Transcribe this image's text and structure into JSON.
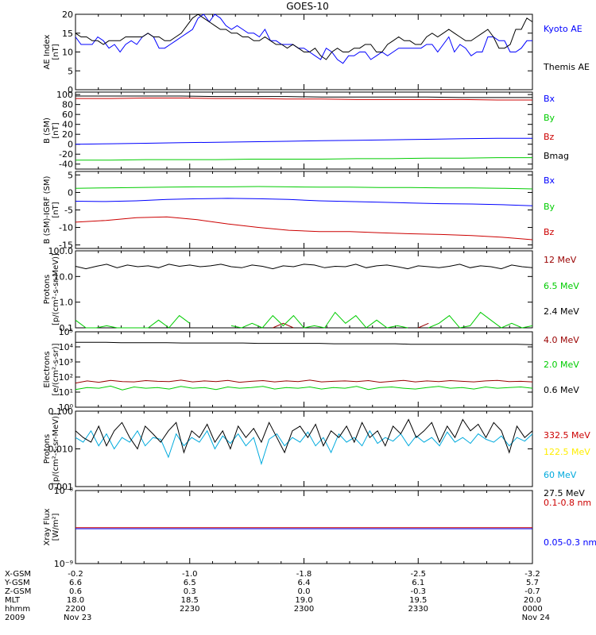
{
  "title": "GOES-10",
  "colors": {
    "black": "#000000",
    "blue": "#0000ff",
    "red": "#cc0000",
    "green": "#00cc00",
    "yellow": "#ffee00",
    "cyan": "#00aadd",
    "darkred": "#990000"
  },
  "chart_data": [
    {
      "type": "line",
      "ylabel": [
        "AE Index",
        "[nT]"
      ],
      "scale": "linear",
      "ylim": [
        0,
        20
      ],
      "yticks": [
        "0",
        "5",
        "10",
        "15",
        "20"
      ],
      "series": [
        {
          "name": "Kyoto AE",
          "color": "blue",
          "values": [
            14,
            12,
            12,
            12,
            14,
            13,
            11,
            12,
            10,
            12,
            13,
            12,
            14,
            15,
            14,
            11,
            11,
            12,
            13,
            14,
            15,
            16,
            19,
            20,
            18,
            20,
            19,
            17,
            16,
            17,
            16,
            15,
            15,
            14,
            16,
            13,
            13,
            12,
            12,
            12,
            11,
            11,
            10,
            9,
            8,
            11,
            10,
            8,
            7,
            9,
            9,
            10,
            10,
            8,
            9,
            10,
            9,
            10,
            11,
            11,
            11,
            11,
            11,
            12,
            12,
            10,
            12,
            14,
            10,
            12,
            11,
            9,
            10,
            10,
            14,
            14,
            13,
            13,
            10,
            10,
            11,
            13,
            13
          ]
        },
        {
          "name": "Themis AE",
          "color": "black",
          "values": [
            15,
            14,
            14,
            13,
            13,
            12,
            13,
            13,
            13,
            14,
            14,
            14,
            14,
            15,
            14,
            14,
            13,
            13,
            14,
            15,
            17,
            19,
            20,
            19,
            18,
            17,
            16,
            16,
            15,
            15,
            14,
            14,
            13,
            13,
            14,
            13,
            12,
            12,
            11,
            12,
            11,
            10,
            10,
            11,
            9,
            8,
            10,
            11,
            10,
            10,
            11,
            11,
            12,
            12,
            10,
            10,
            12,
            13,
            14,
            13,
            13,
            12,
            12,
            14,
            15,
            14,
            15,
            16,
            15,
            14,
            13,
            13,
            14,
            15,
            16,
            14,
            11,
            11,
            12,
            16,
            16,
            19,
            18
          ]
        }
      ]
    },
    {
      "type": "line",
      "ylabel": [
        "B (SM)",
        "[nT]"
      ],
      "scale": "linear",
      "ylim": [
        -50,
        105
      ],
      "yticks": [
        "-40",
        "-20",
        "0",
        "20",
        "40",
        "60",
        "80",
        "100"
      ],
      "series": [
        {
          "name": "Bx",
          "color": "blue",
          "values": [
            0,
            1,
            2,
            3,
            4,
            5,
            6,
            7,
            8,
            9,
            10,
            11,
            12,
            12
          ]
        },
        {
          "name": "By",
          "color": "green",
          "values": [
            -32,
            -32,
            -31,
            -31,
            -31,
            -30,
            -30,
            -30,
            -29,
            -29,
            -28,
            -28,
            -27,
            -27
          ]
        },
        {
          "name": "Bz",
          "color": "red",
          "values": [
            92,
            92,
            93,
            93,
            92,
            92,
            91,
            91,
            90,
            90,
            90,
            90,
            89,
            89
          ]
        },
        {
          "name": "Bmag",
          "color": "black",
          "values": [
            97,
            97,
            97,
            97,
            96,
            96,
            96,
            95,
            95,
            95,
            95,
            94,
            94,
            94
          ]
        }
      ]
    },
    {
      "type": "line",
      "ylabel": [
        "B (SM)-IGRF (SM)",
        "[nT]"
      ],
      "scale": "linear",
      "ylim": [
        -16,
        6
      ],
      "yticks": [
        "-15",
        "-10",
        "-5",
        "0",
        "5"
      ],
      "series": [
        {
          "name": "Bx",
          "color": "blue",
          "values": [
            -2.5,
            -2.6,
            -2.4,
            -2.0,
            -1.8,
            -1.7,
            -1.8,
            -2.0,
            -2.4,
            -2.6,
            -2.8,
            -3.0,
            -3.2,
            -3.3,
            -3.5,
            -3.8
          ]
        },
        {
          "name": "By",
          "color": "green",
          "values": [
            1.2,
            1.3,
            1.4,
            1.5,
            1.6,
            1.6,
            1.7,
            1.6,
            1.5,
            1.5,
            1.4,
            1.4,
            1.3,
            1.3,
            1.2,
            1.0
          ]
        },
        {
          "name": "Bz",
          "color": "red",
          "values": [
            -8.5,
            -8.0,
            -7.2,
            -7.0,
            -7.8,
            -9.0,
            -10.0,
            -10.8,
            -11.2,
            -11.2,
            -11.5,
            -11.8,
            -12.0,
            -12.3,
            -12.8,
            -13.5
          ]
        }
      ]
    },
    {
      "type": "line",
      "ylabel": [
        "Protons",
        "[p/(cm²-s-sr-MeV)]"
      ],
      "scale": "log",
      "ylim": [
        0.1,
        100
      ],
      "yticks": [
        "0.1",
        "1.0",
        "10.0",
        "100.0"
      ],
      "series": [
        {
          "name": "12 MeV",
          "color": "darkred",
          "values": [
            null,
            null,
            null,
            null,
            null,
            null,
            null,
            null,
            null,
            null,
            null,
            null,
            null,
            null,
            null,
            null,
            null,
            null,
            null,
            0.1,
            0.15,
            0.1,
            null,
            null,
            null,
            null,
            null,
            null,
            null,
            null,
            null,
            null,
            null,
            0.1,
            0.15,
            null,
            null,
            null,
            null,
            null,
            null,
            null,
            null,
            null,
            null
          ]
        },
        {
          "name": "6.5 MeV",
          "color": "green",
          "values": [
            0.2,
            0.1,
            0.1,
            0.12,
            0.1,
            0.1,
            0.1,
            0.1,
            0.2,
            0.1,
            0.3,
            0.15,
            null,
            null,
            null,
            0.12,
            0.1,
            0.15,
            0.1,
            0.3,
            0.12,
            0.3,
            0.1,
            0.12,
            0.1,
            0.4,
            0.15,
            0.3,
            0.1,
            0.2,
            0.1,
            0.12,
            0.1,
            null,
            0.1,
            0.15,
            0.3,
            0.1,
            0.12,
            0.4,
            0.2,
            0.1,
            0.15,
            0.1,
            0.12
          ]
        },
        {
          "name": "2.4 MeV",
          "color": "black",
          "values": [
            25,
            20,
            25,
            30,
            22,
            28,
            24,
            26,
            22,
            30,
            25,
            28,
            24,
            26,
            30,
            24,
            22,
            28,
            25,
            20,
            26,
            24,
            30,
            28,
            22,
            25,
            24,
            30,
            22,
            26,
            28,
            24,
            20,
            26,
            24,
            22,
            25,
            30,
            22,
            26,
            24,
            20,
            28,
            24,
            22
          ]
        }
      ]
    },
    {
      "type": "line",
      "ylabel": [
        "Electrons",
        "[e/(cm²-s-sr)]"
      ],
      "scale": "log",
      "ylim": [
        1,
        100000
      ],
      "yticks": [
        "10⁰",
        "10¹",
        "10²",
        "10³",
        "10⁴",
        "10⁵"
      ],
      "series": [
        {
          "name": "4.0 MeV",
          "color": "darkred",
          "values": [
            40,
            55,
            45,
            60,
            50,
            48,
            58,
            52,
            50,
            62,
            48,
            55,
            50,
            60,
            45,
            52,
            58,
            48,
            55,
            50,
            62,
            48,
            52,
            55,
            50,
            58,
            45,
            52,
            60,
            48,
            55,
            50,
            58,
            52,
            48,
            55,
            60,
            50,
            52,
            48
          ]
        },
        {
          "name": "2.0 MeV",
          "color": "green",
          "values": [
            15,
            20,
            18,
            25,
            14,
            22,
            18,
            20,
            16,
            24,
            18,
            20,
            15,
            22,
            18,
            20,
            24,
            16,
            20,
            18,
            22,
            16,
            20,
            18,
            24,
            15,
            20,
            22,
            18,
            16,
            20,
            24,
            18,
            20,
            16,
            22,
            18,
            20,
            22,
            18
          ]
        },
        {
          "name": "0.6 MeV",
          "color": "black",
          "values": [
            20000,
            20000,
            20000,
            19000,
            19000,
            19000,
            19000,
            18000,
            18000,
            18000,
            18000,
            18000,
            17000,
            17000,
            17000,
            17000,
            17000,
            16000,
            16000,
            16000,
            16000,
            16000,
            15000,
            15000,
            15000,
            15000,
            15000,
            15000,
            15000,
            15000,
            14000
          ]
        }
      ]
    },
    {
      "type": "line",
      "ylabel": [
        "Protons",
        "[p/(cm²-s-sr-MeV)]"
      ],
      "scale": "log",
      "ylim": [
        0.001,
        0.1
      ],
      "yticks": [
        "0.001",
        "0.010",
        "0.100"
      ],
      "series": [
        {
          "name": "332.5 MeV",
          "color": "red",
          "values": []
        },
        {
          "name": "122.5 MeV",
          "color": "yellow",
          "values": []
        },
        {
          "name": "60 MeV",
          "color": "cyan",
          "values": [
            0.02,
            0.015,
            0.03,
            0.012,
            0.025,
            0.01,
            0.02,
            0.015,
            0.03,
            0.012,
            0.02,
            0.018,
            0.006,
            0.025,
            0.012,
            0.02,
            0.015,
            0.03,
            0.01,
            0.022,
            0.014,
            0.025,
            0.012,
            0.02,
            0.004,
            0.018,
            0.025,
            0.012,
            0.02,
            0.015,
            0.028,
            0.012,
            0.02,
            0.008,
            0.025,
            0.015,
            0.02,
            0.012,
            0.03,
            0.014,
            0.02,
            0.016,
            0.025,
            0.012,
            0.022,
            0.015,
            0.02,
            0.012,
            0.028,
            0.015,
            0.02,
            0.014,
            0.025,
            0.018,
            0.015,
            0.022,
            0.012,
            0.02,
            0.016,
            0.025
          ]
        },
        {
          "name": "27.5 MeV",
          "color": "black",
          "values": [
            0.03,
            0.02,
            0.015,
            0.04,
            0.012,
            0.03,
            0.05,
            0.02,
            0.01,
            0.04,
            0.025,
            0.015,
            0.03,
            0.05,
            0.008,
            0.03,
            0.02,
            0.045,
            0.015,
            0.03,
            0.01,
            0.04,
            0.02,
            0.035,
            0.015,
            0.05,
            0.02,
            0.008,
            0.03,
            0.04,
            0.02,
            0.045,
            0.012,
            0.03,
            0.02,
            0.04,
            0.015,
            0.05,
            0.02,
            0.03,
            0.012,
            0.04,
            0.025,
            0.06,
            0.02,
            0.03,
            0.05,
            0.015,
            0.04,
            0.02,
            0.06,
            0.03,
            0.045,
            0.02,
            0.05,
            0.03,
            0.008,
            0.04,
            0.02,
            0.03
          ]
        }
      ]
    },
    {
      "type": "line",
      "ylabel": [
        "Xray Flux",
        "[W/m²]"
      ],
      "scale": "log",
      "ylim": [
        1e-09,
        1e-08
      ],
      "yticks": [
        "10⁻⁹",
        "10⁻⁸"
      ],
      "series": [
        {
          "name": "0.1-0.8 nm",
          "color": "red",
          "values": [
            3.1e-09,
            3.1e-09,
            3.1e-09,
            3.1e-09,
            3.1e-09,
            3.1e-09,
            3.1e-09,
            3.1e-09,
            3.1e-09,
            3.1e-09
          ]
        },
        {
          "name": "0.05-0.3 nm",
          "color": "blue",
          "values": [
            3e-09,
            3e-09,
            3e-09,
            3e-09,
            3e-09,
            3e-09,
            3e-09,
            3e-09,
            3e-09,
            3e-09
          ]
        }
      ]
    }
  ],
  "xaxis": {
    "row_labels": [
      "X-GSM",
      "Y-GSM",
      "Z-GSM",
      "MLT",
      "hhmm",
      "2009"
    ],
    "columns": [
      [
        "-0.2",
        "6.6",
        "0.6",
        "18.0",
        "2200",
        "Nov 23"
      ],
      [
        "-1.0",
        "6.5",
        "0.3",
        "18.5",
        "2230",
        ""
      ],
      [
        "-1.8",
        "6.4",
        "0.0",
        "19.0",
        "2300",
        ""
      ],
      [
        "-2.5",
        "6.1",
        "-0.3",
        "19.5",
        "2330",
        ""
      ],
      [
        "-3.2",
        "5.7",
        "-0.7",
        "20.0",
        "0000",
        "Nov 24"
      ]
    ]
  }
}
